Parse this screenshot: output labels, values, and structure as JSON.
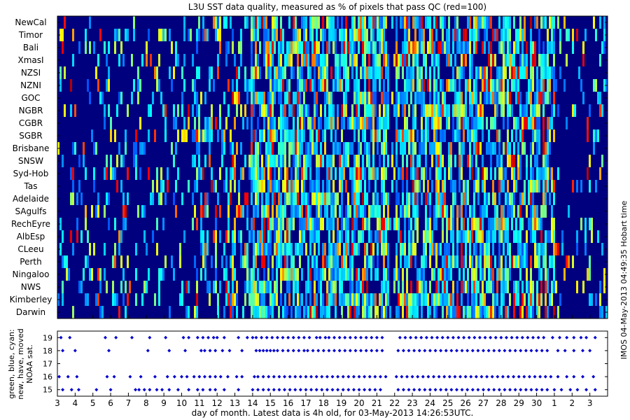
{
  "chart_data": [
    {
      "type": "heatmap",
      "title": "L3U SST data quality, measured as % of pixels that pass QC (red=100)",
      "rows": [
        "NewCal",
        "Timor",
        "Bali",
        "XmasI",
        "NZSI",
        "NZNI",
        "GOC",
        "NGBR",
        "CGBR",
        "SGBR",
        "Brisbane",
        "SNSW",
        "Syd-Hob",
        "Tas",
        "Adelaide",
        "SAgulfs",
        "RechEyre",
        "AlbEsp",
        "CLeeu",
        "Perth",
        "Ningaloo",
        "NWS",
        "Kimberley",
        "Darwin"
      ],
      "x_range": [
        3,
        34
      ],
      "value_range": [
        0,
        100
      ],
      "colormap": "jet",
      "note": "red=100"
    },
    {
      "type": "scatter",
      "xlabel": "day of month. Latest data is 4h old, for 03-May-2013 14:26:53UTC.",
      "ylabel_lines": [
        "green, blue, cyan:",
        "new, have, moved",
        "NOAA sat."
      ],
      "x_range": [
        3,
        34
      ],
      "ylim": [
        14.5,
        19.5
      ],
      "yticks": [
        15,
        16,
        17,
        18,
        19
      ],
      "xticks": [
        "3",
        "4",
        "5",
        "6",
        "7",
        "8",
        "9",
        "10",
        "11",
        "12",
        "13",
        "14",
        "15",
        "16",
        "17",
        "18",
        "19",
        "20",
        "21",
        "22",
        "23",
        "24",
        "25",
        "26",
        "27",
        "28",
        "29",
        "30",
        "1",
        "2",
        "3"
      ],
      "series": [
        {
          "y": 19,
          "x": [
            3.2,
            3.7,
            5.7,
            6.3,
            7.2,
            8.2,
            9.1,
            10.1,
            10.4,
            10.9,
            11.2,
            11.5,
            11.8,
            12.0,
            12.4,
            13.2,
            13.7,
            14.0,
            14.2,
            14.5,
            14.8,
            15.1,
            15.4,
            15.7,
            16.0,
            16.3,
            16.6,
            16.9,
            17.2,
            17.6,
            17.8,
            18.1,
            18.3,
            18.6,
            18.9,
            19.2,
            19.5,
            19.8,
            20.1,
            20.4,
            20.7,
            21.0,
            21.3,
            22.3,
            22.6,
            22.9,
            23.2,
            23.5,
            23.8,
            24.1,
            24.4,
            24.7,
            25.0,
            25.3,
            25.6,
            25.9,
            26.2,
            26.5,
            26.8,
            27.1,
            27.4,
            27.7,
            28.0,
            28.3,
            28.6,
            28.9,
            29.2,
            29.5,
            29.8,
            30.1,
            30.4,
            30.9,
            31.3,
            31.7,
            32.1,
            32.5,
            32.8,
            33.3
          ]
        },
        {
          "y": 18,
          "x": [
            3.3,
            4.0,
            5.9,
            8.1,
            9.3,
            10.2,
            11.1,
            11.3,
            11.6,
            11.9,
            12.3,
            12.7,
            13.4,
            14.2,
            14.4,
            14.6,
            14.8,
            15.0,
            15.2,
            15.4,
            15.7,
            16.0,
            16.3,
            16.6,
            16.9,
            17.1,
            17.4,
            17.7,
            18.0,
            18.3,
            18.6,
            18.9,
            19.2,
            19.5,
            19.8,
            20.1,
            20.4,
            20.7,
            21.0,
            21.3,
            22.2,
            22.5,
            22.8,
            23.1,
            23.4,
            23.7,
            24.0,
            24.3,
            24.6,
            24.9,
            25.2,
            25.5,
            25.8,
            26.1,
            26.4,
            26.7,
            27.0,
            27.3,
            27.6,
            27.9,
            28.2,
            28.5,
            28.8,
            29.1,
            29.4,
            29.7,
            30.0,
            30.3,
            30.6,
            31.2,
            31.6,
            32.1,
            32.6,
            33.0
          ]
        },
        {
          "y": 16,
          "x": [
            3.1,
            3.6,
            4.1,
            5.8,
            6.2,
            7.1,
            7.7,
            8.5,
            9.2,
            9.6,
            10.0,
            10.3,
            10.7,
            11.0,
            11.3,
            11.6,
            11.9,
            12.2,
            12.6,
            13.1,
            13.4,
            14.1,
            14.3,
            14.6,
            14.9,
            15.2,
            15.5,
            15.8,
            16.1,
            16.4,
            16.7,
            17.0,
            17.3,
            17.6,
            17.9,
            18.2,
            18.5,
            18.8,
            19.1,
            19.4,
            19.7,
            20.0,
            20.3,
            20.6,
            20.9,
            21.2,
            21.5,
            22.1,
            22.4,
            22.7,
            23.0,
            23.3,
            23.6,
            23.9,
            24.2,
            24.5,
            24.8,
            25.1,
            25.4,
            25.7,
            26.0,
            26.3,
            26.6,
            26.9,
            27.2,
            27.5,
            27.8,
            28.1,
            28.4,
            28.7,
            29.0,
            29.3,
            29.6,
            29.9,
            30.2,
            30.5,
            30.8,
            31.2,
            31.7,
            32.1,
            32.6,
            33.2
          ]
        },
        {
          "y": 15,
          "x": [
            3.3,
            3.8,
            4.2,
            5.2,
            6.0,
            7.4,
            7.6,
            7.9,
            8.2,
            8.6,
            8.9,
            9.3,
            9.8,
            10.4,
            10.9,
            11.2,
            11.6,
            11.9,
            12.4,
            13.2,
            14.0,
            14.3,
            14.6,
            14.9,
            15.2,
            15.5,
            15.8,
            16.1,
            16.4,
            16.7,
            17.0,
            17.3,
            17.6,
            17.9,
            18.2,
            18.5,
            18.8,
            19.1,
            19.4,
            19.7,
            20.0,
            20.3,
            20.6,
            20.9,
            21.2,
            22.2,
            22.5,
            22.8,
            23.1,
            23.4,
            23.7,
            24.0,
            24.3,
            24.6,
            24.9,
            25.2,
            25.5,
            25.8,
            26.1,
            26.4,
            26.7,
            27.0,
            27.3,
            27.6,
            27.9,
            28.2,
            28.5,
            28.8,
            29.1,
            29.4,
            29.7,
            30.0,
            30.3,
            30.6,
            31.0,
            31.4,
            31.9,
            32.3,
            32.8,
            33.3
          ]
        }
      ]
    }
  ],
  "side_label": "IMOS 04-May-2013 04:49:35 Hobart time",
  "colors": {
    "marker": "#0000cc",
    "background": "#00007f",
    "axis": "#000000"
  }
}
